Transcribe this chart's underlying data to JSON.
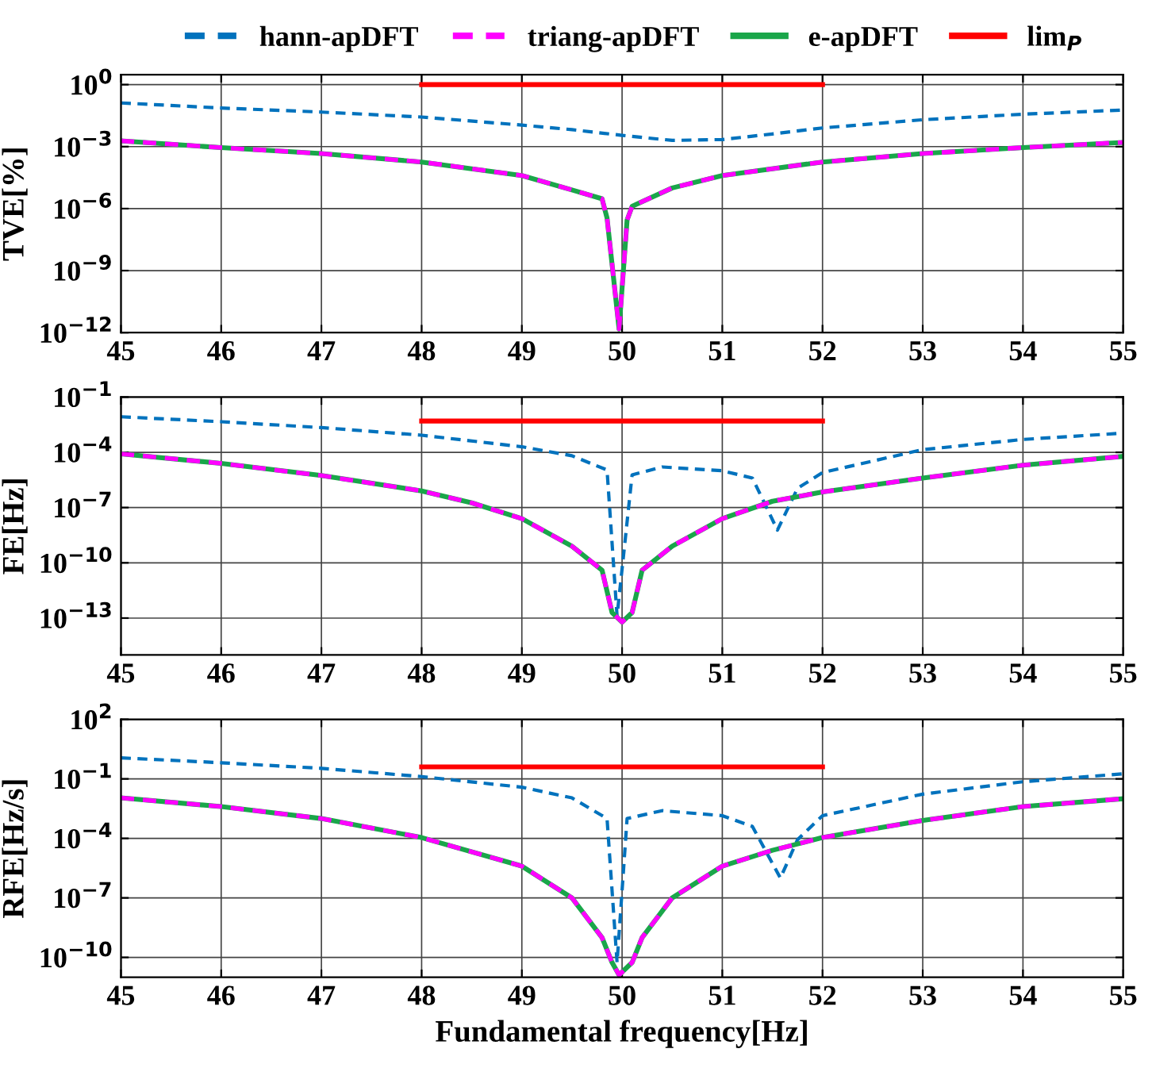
{
  "chart_data": [
    {
      "type": "line",
      "ylabel": "TVE[%]",
      "log": "y",
      "grid": true,
      "legend": "top",
      "xlim": [
        45,
        55
      ],
      "xticks": [
        45,
        46,
        47,
        48,
        49,
        50,
        51,
        52,
        53,
        54,
        55
      ],
      "ylim": [
        1e-12,
        3
      ],
      "yticks": [
        {
          "value": 1,
          "label": "10$^{0}$"
        },
        {
          "value": 0.001,
          "label": "10$^{−3}$"
        },
        {
          "value": 1e-06,
          "label": "10$^{−6}$"
        },
        {
          "value": 1e-09,
          "label": "10$^{−9}$"
        },
        {
          "value": 1e-12,
          "label": "10$^{−12}$"
        }
      ],
      "series": [
        {
          "name": "hann-apDFT",
          "color": "#0072bd",
          "line_style": "dashed",
          "x": [
            45,
            46,
            47,
            48,
            49,
            49.5,
            50,
            50.5,
            51,
            51.5,
            52,
            53,
            54,
            55
          ],
          "values": [
            0.13,
            0.074,
            0.047,
            0.027,
            0.011,
            0.0066,
            0.0035,
            0.002,
            0.0022,
            0.0041,
            0.008,
            0.02,
            0.037,
            0.059
          ]
        },
        {
          "name": "e-apDFT",
          "color": "#1aa64a",
          "line_style": "solid",
          "x": [
            45,
            46,
            47,
            48,
            49,
            49.5,
            49.8,
            49.85,
            49.97,
            50.05,
            50.1,
            50.5,
            51,
            52,
            53,
            54,
            55
          ],
          "values": [
            0.0019,
            0.0009,
            0.00046,
            0.00018,
            4e-05,
            8e-06,
            3e-06,
            3.5e-07,
            1.5e-12,
            2.8e-07,
            1.3e-06,
            1e-05,
            4e-05,
            0.00018,
            0.00046,
            0.0009,
            0.0016
          ]
        },
        {
          "name": "triang-apDFT",
          "color": "#ff00ff",
          "line_style": "dashed",
          "x": [
            45,
            46,
            47,
            48,
            49,
            49.5,
            49.8,
            49.85,
            49.97,
            50.05,
            50.1,
            50.5,
            51,
            52,
            53,
            54,
            55
          ],
          "values": [
            0.0019,
            0.0009,
            0.00046,
            0.00018,
            4e-05,
            8e-06,
            3e-06,
            3.5e-07,
            1.5e-12,
            2.8e-07,
            1.3e-06,
            1e-05,
            4e-05,
            0.00018,
            0.00046,
            0.0009,
            0.0016
          ]
        },
        {
          "name": "lim$_{P}$",
          "color": "#ff0000",
          "line_style": "solid",
          "x": [
            48,
            52
          ],
          "values": [
            1,
            1
          ]
        }
      ]
    },
    {
      "type": "line",
      "ylabel": "FE[Hz]",
      "log": "y",
      "grid": true,
      "xlim": [
        45,
        55
      ],
      "xticks": [
        45,
        46,
        47,
        48,
        49,
        50,
        51,
        52,
        53,
        54,
        55
      ],
      "ylim": [
        1e-15,
        0.1
      ],
      "yticks": [
        {
          "value": 0.1,
          "label": "10$^{−1}$"
        },
        {
          "value": 0.0001,
          "label": "10$^{−4}$"
        },
        {
          "value": 1e-07,
          "label": "10$^{−7}$"
        },
        {
          "value": 1e-10,
          "label": "10$^{−10}$"
        },
        {
          "value": 1e-13,
          "label": "10$^{−13}$"
        }
      ],
      "series": [
        {
          "color": "#0072bd",
          "line_style": "dashed",
          "x": [
            45,
            46,
            47,
            48,
            49,
            49.5,
            49.85,
            49.95,
            50.1,
            50.4,
            51,
            51.3,
            51.55,
            51.75,
            52,
            53,
            54,
            55
          ],
          "values": [
            0.0085,
            0.0046,
            0.0022,
            0.00085,
            0.0002,
            6.5e-05,
            1.1e-05,
            1.3e-13,
            6e-06,
            1.6e-05,
            1e-05,
            4e-06,
            6e-09,
            1.1e-06,
            8e-06,
            0.00014,
            0.0005,
            0.0011
          ]
        },
        {
          "color": "#1aa64a",
          "line_style": "solid",
          "x": [
            45,
            46,
            47,
            48,
            48.5,
            49,
            49.5,
            49.8,
            49.9,
            50,
            50.1,
            50.2,
            50.5,
            51,
            51.5,
            52,
            53,
            54,
            55
          ],
          "values": [
            8.3e-05,
            2.5e-05,
            5.5e-06,
            8e-07,
            1.8e-07,
            2.5e-08,
            8e-10,
            4e-11,
            2e-13,
            6e-14,
            2e-13,
            4e-11,
            8e-10,
            2.5e-08,
            2.2e-07,
            7e-07,
            4e-06,
            2e-05,
            6e-05
          ]
        },
        {
          "color": "#ff00ff",
          "line_style": "dashed",
          "x": [
            45,
            46,
            47,
            48,
            48.5,
            49,
            49.5,
            49.8,
            49.9,
            50,
            50.1,
            50.2,
            50.5,
            51,
            51.5,
            52,
            53,
            54,
            55
          ],
          "values": [
            8.3e-05,
            2.5e-05,
            5.5e-06,
            8e-07,
            1.8e-07,
            2.5e-08,
            8e-10,
            4e-11,
            2e-13,
            6e-14,
            2e-13,
            4e-11,
            8e-10,
            2.5e-08,
            2.2e-07,
            7e-07,
            4e-06,
            2e-05,
            6e-05
          ]
        },
        {
          "color": "#ff0000",
          "line_style": "solid",
          "x": [
            48,
            52
          ],
          "values": [
            0.005,
            0.005
          ]
        }
      ]
    },
    {
      "type": "line",
      "xlabel": "Fundamental frequency[Hz]",
      "ylabel": "RFE[Hz/s]",
      "log": "y",
      "grid": true,
      "xlim": [
        45,
        55
      ],
      "xticks": [
        45,
        46,
        47,
        48,
        49,
        50,
        51,
        52,
        53,
        54,
        55
      ],
      "ylim": [
        1e-11,
        100
      ],
      "yticks": [
        {
          "value": 100,
          "label": "10$^{2}$"
        },
        {
          "value": 0.1,
          "label": "10$^{−1}$"
        },
        {
          "value": 0.0001,
          "label": "10$^{−4}$"
        },
        {
          "value": 1e-07,
          "label": "10$^{−7}$"
        },
        {
          "value": 1e-10,
          "label": "10$^{−10}$"
        }
      ],
      "series": [
        {
          "color": "#0072bd",
          "line_style": "dashed",
          "x": [
            45,
            46,
            47,
            48,
            49,
            49.5,
            49.85,
            49.95,
            50.05,
            50.4,
            51,
            51.3,
            51.58,
            51.75,
            52,
            53,
            54,
            55
          ],
          "values": [
            1.15,
            0.65,
            0.34,
            0.13,
            0.038,
            0.011,
            0.001,
            5.5e-11,
            0.001,
            0.0025,
            0.0014,
            0.0004,
            1e-06,
            8.5e-05,
            0.0014,
            0.017,
            0.072,
            0.18
          ]
        },
        {
          "color": "#1aa64a",
          "line_style": "solid",
          "x": [
            45,
            46,
            47,
            48,
            49,
            49.5,
            49.8,
            49.9,
            49.97,
            50.1,
            50.2,
            50.5,
            51,
            51.5,
            52,
            53,
            54,
            55
          ],
          "values": [
            0.011,
            0.004,
            0.001,
            0.00011,
            4e-06,
            1e-07,
            1e-09,
            5.5e-11,
            1.3e-11,
            5.5e-11,
            1e-09,
            1e-07,
            4e-06,
            2.5e-05,
            0.00011,
            0.0008,
            0.004,
            0.01
          ]
        },
        {
          "color": "#ff00ff",
          "line_style": "dashed",
          "x": [
            45,
            46,
            47,
            48,
            49,
            49.5,
            49.8,
            49.9,
            49.97,
            50.1,
            50.2,
            50.5,
            51,
            51.5,
            52,
            53,
            54,
            55
          ],
          "values": [
            0.011,
            0.004,
            0.001,
            0.00011,
            4e-06,
            1e-07,
            1e-09,
            5.5e-11,
            1.3e-11,
            5.5e-11,
            1e-09,
            1e-07,
            4e-06,
            2.5e-05,
            0.00011,
            0.0008,
            0.004,
            0.01
          ]
        },
        {
          "color": "#ff0000",
          "line_style": "solid",
          "x": [
            48,
            52
          ],
          "values": [
            0.4,
            0.4
          ]
        }
      ]
    }
  ]
}
